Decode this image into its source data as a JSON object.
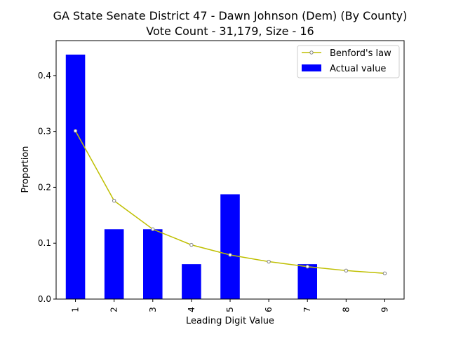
{
  "chart_data": {
    "type": "bar",
    "title_line1": "GA State Senate District 47 - Dawn Johnson (Dem) (By County)",
    "title_line2": "Vote Count - 31,179, Size - 16",
    "xlabel": "Leading Digit Value",
    "ylabel": "Proportion",
    "categories": [
      "1",
      "2",
      "3",
      "4",
      "5",
      "6",
      "7",
      "8",
      "9"
    ],
    "ylim": [
      0,
      0.4625
    ],
    "yticks": [
      0.0,
      0.1,
      0.2,
      0.3,
      0.4
    ],
    "ytick_labels": [
      "0.0",
      "0.1",
      "0.2",
      "0.3",
      "0.4"
    ],
    "series": [
      {
        "name": "Actual value",
        "kind": "bar",
        "color": "#0000ff",
        "values": [
          0.4375,
          0.125,
          0.125,
          0.0625,
          0.1875,
          0.0,
          0.0625,
          0.0,
          0.0
        ]
      },
      {
        "name": "Benford's law",
        "kind": "line",
        "color": "#bfbf00",
        "values": [
          0.301,
          0.176,
          0.125,
          0.097,
          0.079,
          0.067,
          0.058,
          0.051,
          0.046
        ]
      }
    ],
    "legend_position": "top-right",
    "grid": false
  }
}
